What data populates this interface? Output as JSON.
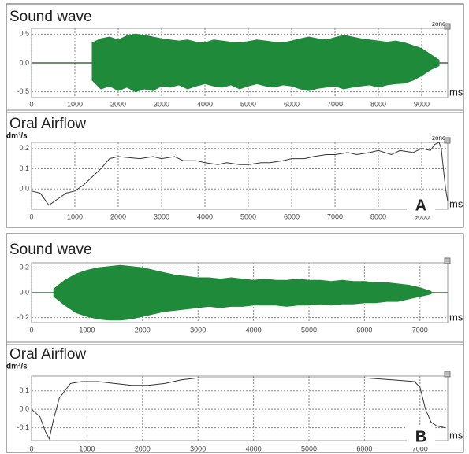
{
  "chart_data": [
    {
      "type": "envelope",
      "title": "Sound wave",
      "xlabel": "ms",
      "annotation": "zone",
      "color": "#1f8a3a",
      "xlim": [
        0,
        9600
      ],
      "xticks": [
        0,
        1000,
        2000,
        3000,
        4000,
        5000,
        6000,
        7000,
        8000,
        9000
      ],
      "ylim": [
        -0.6,
        0.6
      ],
      "yticks": [
        0.5,
        {
          "value": 0,
          "label": "0.0"
        },
        -0.5
      ],
      "grid": true,
      "x": [
        1400,
        1600,
        1800,
        2000,
        2200,
        2400,
        2600,
        2800,
        3000,
        3200,
        3400,
        3600,
        3800,
        4000,
        4200,
        4400,
        4600,
        4800,
        5000,
        5200,
        5400,
        5600,
        5800,
        6000,
        6200,
        6400,
        6600,
        6800,
        7000,
        7200,
        7400,
        7600,
        7800,
        8000,
        8200,
        8400,
        8600,
        8800,
        9000,
        9200,
        9400
      ],
      "upper": [
        0.35,
        0.42,
        0.45,
        0.4,
        0.47,
        0.5,
        0.48,
        0.45,
        0.42,
        0.4,
        0.38,
        0.4,
        0.36,
        0.35,
        0.4,
        0.38,
        0.36,
        0.35,
        0.37,
        0.4,
        0.38,
        0.36,
        0.35,
        0.38,
        0.42,
        0.45,
        0.42,
        0.4,
        0.44,
        0.48,
        0.45,
        0.42,
        0.4,
        0.38,
        0.36,
        0.38,
        0.35,
        0.3,
        0.25,
        0.15,
        0.05
      ],
      "lower": [
        -0.3,
        -0.45,
        -0.4,
        -0.48,
        -0.42,
        -0.5,
        -0.45,
        -0.48,
        -0.4,
        -0.42,
        -0.38,
        -0.45,
        -0.4,
        -0.36,
        -0.4,
        -0.42,
        -0.38,
        -0.45,
        -0.4,
        -0.36,
        -0.4,
        -0.42,
        -0.38,
        -0.4,
        -0.45,
        -0.48,
        -0.44,
        -0.42,
        -0.4,
        -0.45,
        -0.42,
        -0.4,
        -0.38,
        -0.42,
        -0.38,
        -0.36,
        -0.35,
        -0.3,
        -0.22,
        -0.12,
        -0.05
      ]
    },
    {
      "type": "line",
      "title": "Oral Airflow",
      "ylabel": "dm³/s",
      "xlabel": "ms",
      "annotation": "zone",
      "panel_label": "A",
      "color": "#333333",
      "xlim": [
        0,
        9600
      ],
      "xticks": [
        0,
        1000,
        2000,
        3000,
        4000,
        5000,
        6000,
        7000,
        8000,
        9000
      ],
      "ylim": [
        -0.1,
        0.23
      ],
      "yticks": [
        0.2,
        0.1,
        {
          "value": 0,
          "label": "0.0"
        }
      ],
      "grid": true,
      "x": [
        0,
        200,
        400,
        600,
        800,
        1000,
        1200,
        1400,
        1600,
        1800,
        2000,
        2500,
        2800,
        3000,
        3300,
        3500,
        3800,
        4000,
        4300,
        4500,
        4800,
        5000,
        5300,
        5500,
        5800,
        6000,
        6300,
        6500,
        6800,
        7000,
        7300,
        7500,
        7800,
        8000,
        8300,
        8500,
        8800,
        9000,
        9200,
        9300,
        9400,
        9450,
        9500,
        9550,
        9600
      ],
      "values": [
        -0.01,
        -0.02,
        -0.08,
        -0.05,
        -0.02,
        -0.01,
        0.02,
        0.06,
        0.1,
        0.15,
        0.16,
        0.15,
        0.16,
        0.15,
        0.16,
        0.14,
        0.14,
        0.13,
        0.12,
        0.13,
        0.12,
        0.12,
        0.13,
        0.13,
        0.14,
        0.15,
        0.15,
        0.16,
        0.17,
        0.17,
        0.18,
        0.17,
        0.18,
        0.19,
        0.17,
        0.19,
        0.18,
        0.2,
        0.19,
        0.22,
        0.23,
        0.2,
        0.1,
        0.0,
        -0.06
      ]
    },
    {
      "type": "envelope",
      "title": "Sound wave",
      "xlabel": "ms",
      "color": "#1f8a3a",
      "xlim": [
        0,
        7500
      ],
      "xticks": [
        0,
        1000,
        2000,
        3000,
        4000,
        5000,
        6000,
        7000
      ],
      "ylim": [
        -0.24,
        0.24
      ],
      "yticks": [
        0.2,
        {
          "value": 0,
          "label": "0.0"
        },
        -0.2
      ],
      "grid": true,
      "x": [
        400,
        600,
        800,
        1000,
        1200,
        1400,
        1600,
        1800,
        2000,
        2200,
        2400,
        2600,
        2800,
        3000,
        3200,
        3400,
        3600,
        3800,
        4000,
        4200,
        4400,
        4600,
        4800,
        5000,
        5200,
        5400,
        5600,
        5800,
        6000,
        6200,
        6400,
        6600,
        6800,
        7000,
        7200
      ],
      "upper": [
        0.03,
        0.1,
        0.15,
        0.18,
        0.2,
        0.21,
        0.22,
        0.21,
        0.2,
        0.18,
        0.16,
        0.14,
        0.13,
        0.12,
        0.12,
        0.11,
        0.12,
        0.11,
        0.1,
        0.11,
        0.1,
        0.1,
        0.11,
        0.1,
        0.1,
        0.09,
        0.1,
        0.09,
        0.09,
        0.08,
        0.08,
        0.07,
        0.06,
        0.04,
        0.01
      ],
      "lower": [
        -0.03,
        -0.1,
        -0.16,
        -0.19,
        -0.21,
        -0.22,
        -0.22,
        -0.21,
        -0.19,
        -0.17,
        -0.15,
        -0.14,
        -0.13,
        -0.12,
        -0.11,
        -0.12,
        -0.11,
        -0.11,
        -0.1,
        -0.1,
        -0.1,
        -0.11,
        -0.1,
        -0.1,
        -0.09,
        -0.1,
        -0.09,
        -0.09,
        -0.08,
        -0.08,
        -0.07,
        -0.07,
        -0.05,
        -0.03,
        -0.01
      ]
    },
    {
      "type": "line",
      "title": "Oral Airflow",
      "ylabel": "dm³/s",
      "xlabel": "ms",
      "panel_label": "B",
      "color": "#333333",
      "xlim": [
        0,
        7500
      ],
      "xticks": [
        0,
        1000,
        2000,
        3000,
        4000,
        5000,
        6000,
        7000
      ],
      "ylim": [
        -0.17,
        0.18
      ],
      "yticks": [
        0.1,
        {
          "value": 0,
          "label": "0.0"
        },
        -0.1
      ],
      "grid": true,
      "x": [
        0,
        150,
        250,
        320,
        400,
        500,
        700,
        900,
        1200,
        1500,
        1800,
        2100,
        2400,
        2700,
        3000,
        3500,
        4000,
        4500,
        5000,
        5500,
        6000,
        6500,
        6900,
        7000,
        7100,
        7200,
        7300,
        7450
      ],
      "values": [
        0.0,
        -0.04,
        -0.12,
        -0.16,
        -0.05,
        0.06,
        0.14,
        0.15,
        0.15,
        0.14,
        0.13,
        0.13,
        0.14,
        0.16,
        0.17,
        0.17,
        0.17,
        0.17,
        0.17,
        0.17,
        0.17,
        0.16,
        0.15,
        0.12,
        0.0,
        -0.07,
        -0.09,
        -0.1
      ]
    }
  ]
}
